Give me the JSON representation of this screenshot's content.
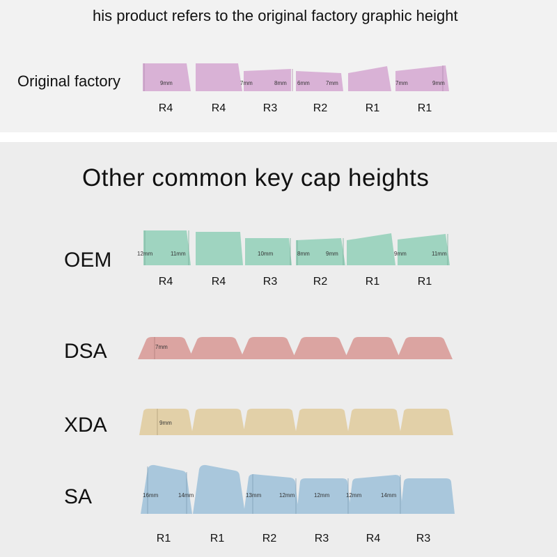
{
  "top": {
    "heading": "his product refers to the original factory graphic height",
    "row_label": "Original factory",
    "color": "#d9b2d6",
    "dims": [
      "9mm",
      "7mm",
      "8mm",
      "6mm",
      "7mm",
      "7mm",
      "9mm"
    ],
    "rows": [
      "R4",
      "R4",
      "R3",
      "R2",
      "R1",
      "R1"
    ]
  },
  "bottom": {
    "heading": "Other common key cap heights",
    "oem": {
      "label": "OEM",
      "color": "#9fd4c0",
      "dims": [
        "12mm",
        "11mm",
        "10mm",
        "8mm",
        "9mm",
        "9mm",
        "11mm"
      ],
      "rows": [
        "R4",
        "R4",
        "R3",
        "R2",
        "R1",
        "R1"
      ]
    },
    "dsa": {
      "label": "DSA",
      "color": "#dba4a1",
      "dims": [
        "7mm"
      ]
    },
    "xda": {
      "label": "XDA",
      "color": "#e2d0a8",
      "dims": [
        "9mm"
      ]
    },
    "sa": {
      "label": "SA",
      "color": "#a9c7dc",
      "dims": [
        "16mm",
        "14mm",
        "13mm",
        "12mm",
        "12mm",
        "12mm",
        "14mm"
      ],
      "rows": [
        "R1",
        "R1",
        "R2",
        "R3",
        "R4",
        "R3"
      ]
    }
  }
}
